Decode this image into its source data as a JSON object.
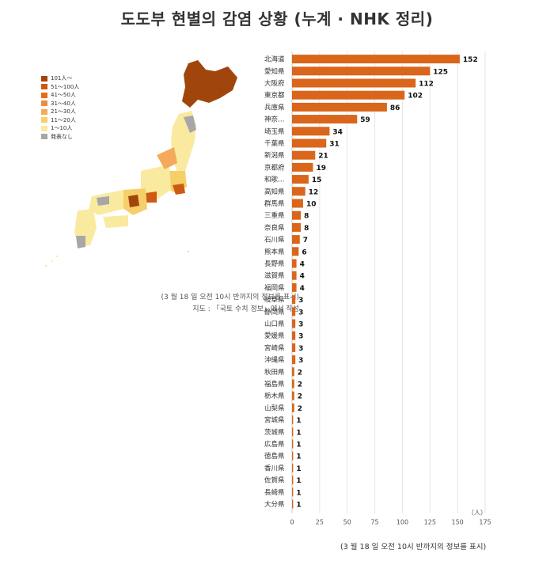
{
  "title": "도도부 현별의 감염 상황 (누계 · NHK 정리)",
  "map": {
    "legend": [
      {
        "label": "101人～",
        "color": "#a0460d"
      },
      {
        "label": "51～100人",
        "color": "#cc5a12"
      },
      {
        "label": "41～50人",
        "color": "#e36d1c"
      },
      {
        "label": "31～40人",
        "color": "#ef8a44"
      },
      {
        "label": "21～30人",
        "color": "#f5a95a"
      },
      {
        "label": "11～20人",
        "color": "#f7cf6a"
      },
      {
        "label": "1～10人",
        "color": "#faeaa0"
      },
      {
        "label": "発表なし",
        "color": "#a7a7a7"
      }
    ],
    "note_line1": "(3 월 18 일 오전 10시 반까지의 정보를 표시)",
    "note_line2": "지도 : 「국토 수치 정보」에서 작성"
  },
  "bar_note": "(3 월 18 일 오전 10시 반까지의 정보를 표시)",
  "chart_data": {
    "type": "bar",
    "orientation": "horizontal",
    "categories": [
      "北海道",
      "愛知県",
      "大阪府",
      "東京都",
      "兵庫県",
      "神奈…",
      "埼玉県",
      "千葉県",
      "新潟県",
      "京都府",
      "和歌…",
      "高知県",
      "群馬県",
      "三重県",
      "奈良県",
      "石川県",
      "熊本県",
      "長野県",
      "滋賀県",
      "福岡県",
      "岐阜県",
      "静岡県",
      "山口県",
      "愛媛県",
      "宮崎県",
      "沖縄県",
      "秋田県",
      "福島県",
      "栃木県",
      "山梨県",
      "宮城県",
      "茨城県",
      "広島県",
      "徳島県",
      "香川県",
      "佐賀県",
      "長崎県",
      "大分県"
    ],
    "values": [
      152,
      125,
      112,
      102,
      86,
      59,
      34,
      31,
      21,
      19,
      15,
      12,
      10,
      8,
      8,
      7,
      6,
      4,
      4,
      4,
      3,
      3,
      3,
      3,
      3,
      3,
      2,
      2,
      2,
      2,
      1,
      1,
      1,
      1,
      1,
      1,
      1,
      1
    ],
    "xlim": [
      0,
      175
    ],
    "xticks": [
      "0",
      "25",
      "50",
      "75",
      "100",
      "125",
      "150",
      "175"
    ],
    "unit_label": "（人）",
    "bar_color": "#d9661a",
    "grid": true
  }
}
